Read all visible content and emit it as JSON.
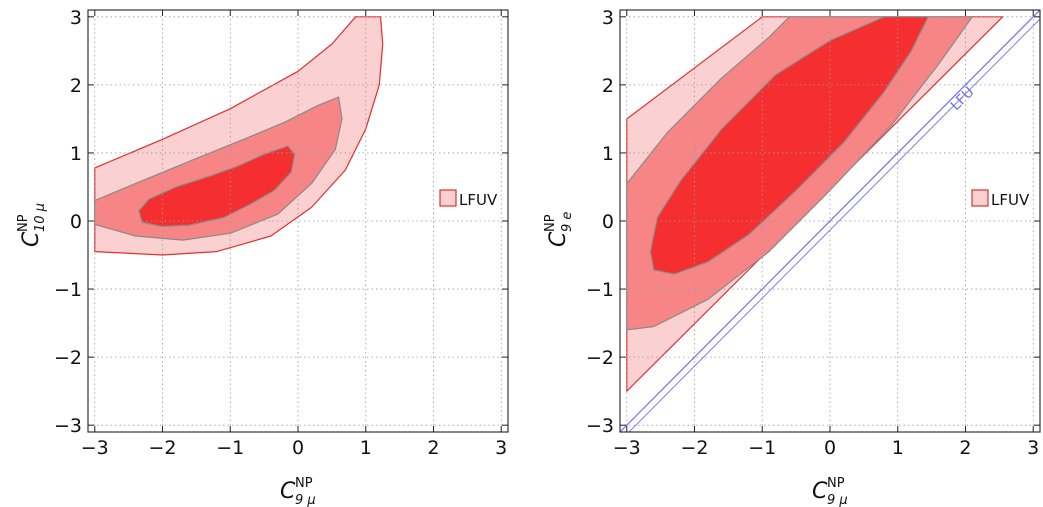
{
  "chart_data": [
    {
      "type": "contour",
      "xlabel": {
        "main": "C",
        "sup": "NP",
        "sub": "9 μ"
      },
      "ylabel": {
        "main": "C",
        "sup": "NP",
        "sub": "10 μ"
      },
      "xlim": [
        -3.1,
        3.1
      ],
      "ylim": [
        -3.1,
        3.1
      ],
      "xticks": [
        -3,
        -2,
        -1,
        0,
        1,
        2,
        3
      ],
      "yticks": [
        -3,
        -2,
        -1,
        0,
        1,
        2,
        3
      ],
      "xtick_labels": [
        "−3",
        "−2",
        "−1",
        "0",
        "1",
        "2",
        "3"
      ],
      "ytick_labels": [
        "−3",
        "−2",
        "−1",
        "0",
        "1",
        "2",
        "3"
      ],
      "grid": true,
      "legend": {
        "label": "LFUV",
        "placement": "right"
      },
      "regions": [
        {
          "level": "outer",
          "fill": "#fbd0d0",
          "stroke": "#e03030",
          "polygon": [
            [
              -3.0,
              0.78
            ],
            [
              -2.0,
              1.2
            ],
            [
              -1.0,
              1.65
            ],
            [
              0.0,
              2.2
            ],
            [
              0.5,
              2.6
            ],
            [
              0.85,
              3.0
            ],
            [
              1.22,
              3.0
            ],
            [
              1.25,
              2.6
            ],
            [
              1.2,
              2.0
            ],
            [
              1.0,
              1.35
            ],
            [
              0.7,
              0.75
            ],
            [
              0.2,
              0.2
            ],
            [
              -0.4,
              -0.22
            ],
            [
              -1.2,
              -0.45
            ],
            [
              -2.0,
              -0.5
            ],
            [
              -3.0,
              -0.45
            ]
          ]
        },
        {
          "level": "middle",
          "fill": "#f88585",
          "stroke": "#8a8a8a",
          "polygon": [
            [
              -3.0,
              0.3
            ],
            [
              -2.4,
              0.55
            ],
            [
              -1.5,
              0.92
            ],
            [
              -0.8,
              1.2
            ],
            [
              -0.2,
              1.45
            ],
            [
              0.3,
              1.7
            ],
            [
              0.6,
              1.82
            ],
            [
              0.65,
              1.5
            ],
            [
              0.55,
              1.05
            ],
            [
              0.2,
              0.55
            ],
            [
              -0.3,
              0.1
            ],
            [
              -1.0,
              -0.18
            ],
            [
              -1.7,
              -0.28
            ],
            [
              -2.4,
              -0.22
            ],
            [
              -3.0,
              -0.05
            ]
          ]
        },
        {
          "level": "inner",
          "fill": "#f52f2f",
          "stroke": "#8a8a8a",
          "polygon": [
            [
              -2.35,
              0.15
            ],
            [
              -2.2,
              0.32
            ],
            [
              -1.8,
              0.5
            ],
            [
              -1.3,
              0.66
            ],
            [
              -0.9,
              0.8
            ],
            [
              -0.5,
              0.98
            ],
            [
              -0.15,
              1.1
            ],
            [
              -0.05,
              0.98
            ],
            [
              -0.1,
              0.72
            ],
            [
              -0.35,
              0.45
            ],
            [
              -0.7,
              0.25
            ],
            [
              -1.1,
              0.05
            ],
            [
              -1.6,
              -0.06
            ],
            [
              -2.0,
              -0.08
            ],
            [
              -2.3,
              -0.02
            ]
          ]
        }
      ],
      "annotations": []
    },
    {
      "type": "contour",
      "xlabel": {
        "main": "C",
        "sup": "NP",
        "sub": "9 μ"
      },
      "ylabel": {
        "main": "C",
        "sup": "NP",
        "sub": "9 e"
      },
      "xlim": [
        -3.1,
        3.1
      ],
      "ylim": [
        -3.1,
        3.1
      ],
      "xticks": [
        -3,
        -2,
        -1,
        0,
        1,
        2,
        3
      ],
      "yticks": [
        -3,
        -2,
        -1,
        0,
        1,
        2,
        3
      ],
      "xtick_labels": [
        "−3",
        "−2",
        "−1",
        "0",
        "1",
        "2",
        "3"
      ],
      "ytick_labels": [
        "−3",
        "−2",
        "−1",
        "0",
        "1",
        "2",
        "3"
      ],
      "grid": true,
      "legend": {
        "label": "LFUV",
        "placement": "right"
      },
      "regions": [
        {
          "level": "outer",
          "fill": "#fbd0d0",
          "stroke": "#e03030",
          "polygon": [
            [
              -3.0,
              1.5
            ],
            [
              -1.0,
              3.0
            ],
            [
              2.55,
              3.0
            ],
            [
              -3.0,
              -2.5
            ]
          ]
        },
        {
          "level": "middle",
          "fill": "#f88585",
          "stroke": "#8a8a8a",
          "polygon": [
            [
              -3.0,
              0.55
            ],
            [
              -2.4,
              1.3
            ],
            [
              -1.6,
              2.1
            ],
            [
              -0.9,
              2.7
            ],
            [
              -0.6,
              3.0
            ],
            [
              2.1,
              3.0
            ],
            [
              1.6,
              2.3
            ],
            [
              0.9,
              1.4
            ],
            [
              0.0,
              0.45
            ],
            [
              -0.9,
              -0.45
            ],
            [
              -1.8,
              -1.15
            ],
            [
              -2.6,
              -1.55
            ],
            [
              -3.0,
              -1.6
            ]
          ]
        },
        {
          "level": "inner",
          "fill": "#f52f2f",
          "stroke": "#8a8a8a",
          "polygon": [
            [
              -2.65,
              -0.45
            ],
            [
              -2.55,
              0.05
            ],
            [
              -2.2,
              0.6
            ],
            [
              -1.6,
              1.35
            ],
            [
              -0.8,
              2.15
            ],
            [
              0.0,
              2.65
            ],
            [
              0.8,
              3.0
            ],
            [
              1.45,
              3.0
            ],
            [
              1.2,
              2.5
            ],
            [
              0.8,
              1.9
            ],
            [
              0.2,
              1.15
            ],
            [
              -0.5,
              0.45
            ],
            [
              -1.2,
              -0.2
            ],
            [
              -1.8,
              -0.6
            ],
            [
              -2.3,
              -0.78
            ],
            [
              -2.6,
              -0.72
            ]
          ]
        }
      ],
      "lines": [
        {
          "label": "LFU",
          "x": [
            -3.2,
            3.2
          ],
          "y": [
            -3.2,
            3.2
          ],
          "color": "#7070ee"
        }
      ],
      "annotations": [
        {
          "text": "LFU",
          "x": 2.0,
          "y": 1.75,
          "color": "#7070ee",
          "rotate": -45
        }
      ]
    }
  ]
}
